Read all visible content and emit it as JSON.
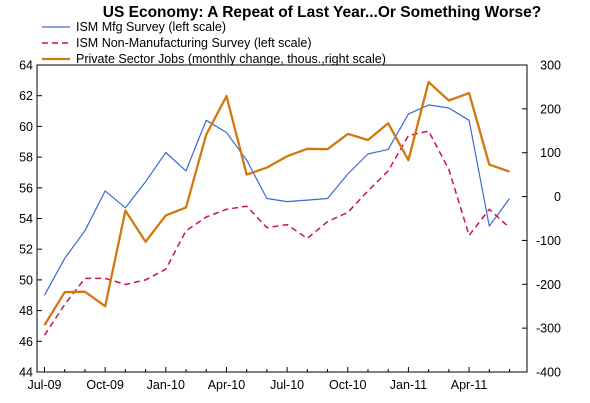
{
  "chart_data": {
    "type": "line",
    "title": "US Economy: A Repeat of Last Year...Or Something Worse?",
    "x": [
      "Jul-09",
      "Aug-09",
      "Sep-09",
      "Oct-09",
      "Nov-09",
      "Dec-09",
      "Jan-10",
      "Feb-10",
      "Mar-10",
      "Apr-10",
      "May-10",
      "Jun-10",
      "Jul-10",
      "Aug-10",
      "Sep-10",
      "Oct-10",
      "Nov-10",
      "Dec-10",
      "Jan-11",
      "Feb-11",
      "Mar-11",
      "Apr-11",
      "May-11",
      "Jun-11"
    ],
    "x_tick_labels": [
      "Jul-09",
      "Oct-09",
      "Jan-10",
      "Apr-10",
      "Jul-10",
      "Oct-10",
      "Jan-11",
      "Apr-11"
    ],
    "left_axis": {
      "ylim": [
        44,
        64
      ],
      "ticks": [
        "44",
        "46",
        "48",
        "50",
        "52",
        "54",
        "56",
        "58",
        "60",
        "62",
        "64"
      ]
    },
    "right_axis": {
      "ylim": [
        -400,
        300
      ],
      "ticks": [
        "-400",
        "-300",
        "-200",
        "-100",
        "0",
        "100",
        "200",
        "300"
      ]
    },
    "grid": false,
    "legend_position": "top-left",
    "series": [
      {
        "name": "ISM Mfg Survey (left scale)",
        "axis": "left",
        "color": "#3b6ad6",
        "dash": "solid",
        "values": [
          49.0,
          51.4,
          53.2,
          55.8,
          54.7,
          56.4,
          58.3,
          57.1,
          60.4,
          59.6,
          57.8,
          55.3,
          55.1,
          55.2,
          55.3,
          56.9,
          58.2,
          58.5,
          60.8,
          61.4,
          61.2,
          60.4,
          53.5,
          55.3
        ]
      },
      {
        "name": "ISM Non-Manufacturing Survey (left scale)",
        "axis": "left",
        "color": "#cc1155",
        "dash": "dashed",
        "values": [
          46.4,
          48.4,
          50.1,
          50.1,
          49.7,
          50.0,
          50.7,
          53.2,
          54.1,
          54.6,
          54.8,
          53.4,
          53.6,
          52.7,
          53.8,
          54.4,
          55.8,
          57.1,
          59.4,
          59.7,
          57.2,
          52.9,
          54.6,
          53.4
        ]
      },
      {
        "name": "Private Sector Jobs (monthly change, thous.,right scale)",
        "axis": "right",
        "color": "#d2780f",
        "dash": "solid",
        "values": [
          -293,
          -218,
          -217,
          -250,
          -32,
          -103,
          -43,
          -25,
          141,
          229,
          50,
          66,
          92,
          109,
          108,
          143,
          129,
          167,
          83,
          261,
          219,
          236,
          73,
          57
        ]
      }
    ]
  }
}
